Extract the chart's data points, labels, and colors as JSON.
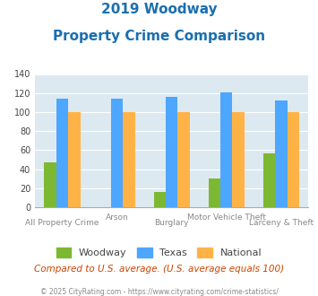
{
  "title_line1": "2019 Woodway",
  "title_line2": "Property Crime Comparison",
  "categories": [
    "All Property Crime",
    "Arson",
    "Burglary",
    "Motor Vehicle Theft",
    "Larceny & Theft"
  ],
  "woodway": [
    47,
    null,
    16,
    30,
    57
  ],
  "texas": [
    114,
    114,
    116,
    121,
    112
  ],
  "national": [
    100,
    100,
    100,
    100,
    100
  ],
  "woodway_color": "#7db832",
  "texas_color": "#4da6ff",
  "national_color": "#ffb347",
  "ylim": [
    0,
    140
  ],
  "yticks": [
    0,
    20,
    40,
    60,
    80,
    100,
    120,
    140
  ],
  "title_color": "#1a6faf",
  "plot_bg": "#dce9f0",
  "bar_width": 0.22,
  "note_text": "Compared to U.S. average. (U.S. average equals 100)",
  "note_color": "#cc4400",
  "footer_text": "© 2025 CityRating.com - https://www.cityrating.com/crime-statistics/",
  "footer_color": "#888888",
  "legend_labels": [
    "Woodway",
    "Texas",
    "National"
  ]
}
